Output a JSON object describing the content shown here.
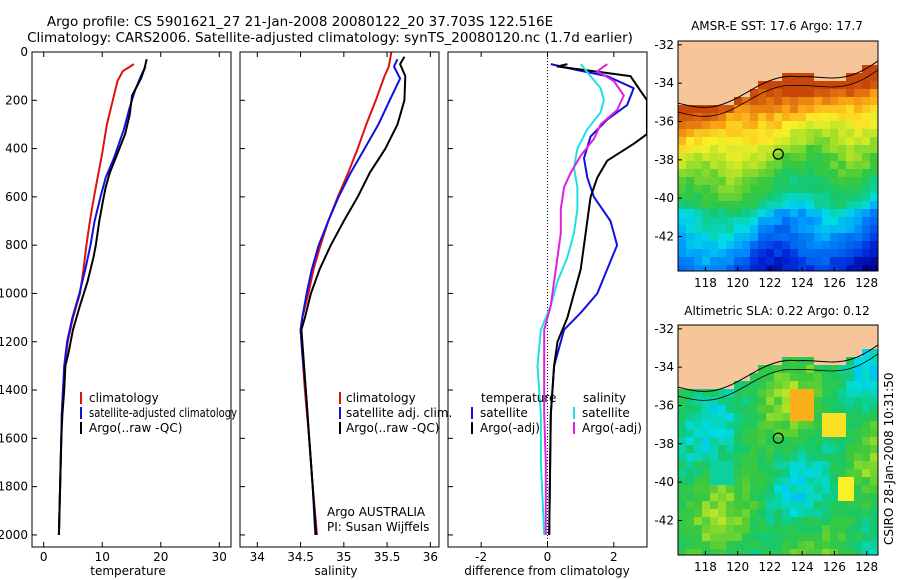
{
  "header": {
    "line1": "Argo profile: CS 5901621_27 21-Jan-2008 20080122_20 37.703S 122.516E",
    "line2": "Climatology: CARS2006. Satellite-adjusted climatology: synTS_20080120.nc (1.7d earlier)"
  },
  "side_stamp": "CSIRO 28-Jan-2008 10:31:50",
  "colors": {
    "red": "#e01010",
    "blue": "#1010e0",
    "black": "#000000",
    "cyan": "#20e0e0",
    "magenta": "#e020e0",
    "land": "#f6c59a"
  },
  "chart_data": [
    {
      "type": "line",
      "xlabel": "temperature",
      "ylabel": "",
      "xlim": [
        -2,
        32
      ],
      "ylim": [
        2050,
        0
      ],
      "xticks": [
        0,
        10,
        20,
        30
      ],
      "yticks": [
        0,
        200,
        400,
        600,
        800,
        1000,
        1200,
        1400,
        1600,
        1800,
        2000
      ],
      "legend": {
        "position": "lower-right",
        "entries": [
          "climatology",
          "satellite-adjusted climatology",
          "Argo(..raw -QC)"
        ]
      },
      "series": [
        {
          "name": "climatology",
          "color": "red",
          "points": [
            [
              15.4,
              50
            ],
            [
              13.5,
              80
            ],
            [
              12.6,
              120
            ],
            [
              11.8,
              200
            ],
            [
              10.8,
              300
            ],
            [
              10.0,
              420
            ],
            [
              9.2,
              520
            ],
            [
              8.6,
              600
            ],
            [
              7.9,
              700
            ],
            [
              7.3,
              800
            ],
            [
              6.8,
              900
            ],
            [
              6.2,
              1000
            ],
            [
              5.0,
              1100
            ],
            [
              4.1,
              1200
            ],
            [
              3.6,
              1300
            ],
            [
              3.3,
              1400
            ],
            [
              3.1,
              1500
            ],
            [
              3.0,
              1600
            ],
            [
              2.9,
              1700
            ],
            [
              2.8,
              1800
            ],
            [
              2.7,
              1900
            ],
            [
              2.6,
              2000
            ]
          ]
        },
        {
          "name": "satellite-adjusted climatology",
          "color": "blue",
          "points": [
            [
              17.4,
              60
            ],
            [
              16.6,
              100
            ],
            [
              15.6,
              160
            ],
            [
              14.7,
              230
            ],
            [
              13.7,
              320
            ],
            [
              12.0,
              440
            ],
            [
              10.6,
              520
            ],
            [
              9.7,
              600
            ],
            [
              8.7,
              700
            ],
            [
              8.0,
              800
            ],
            [
              7.1,
              900
            ],
            [
              6.1,
              1000
            ],
            [
              4.9,
              1100
            ],
            [
              4.0,
              1200
            ],
            [
              3.5,
              1300
            ],
            [
              3.3,
              1400
            ],
            [
              3.1,
              1500
            ],
            [
              3.0,
              1600
            ],
            [
              2.9,
              1700
            ],
            [
              2.8,
              1800
            ],
            [
              2.7,
              1900
            ],
            [
              2.6,
              2000
            ]
          ]
        },
        {
          "name": "Argo(..raw -QC)",
          "color": "black",
          "points": [
            [
              17.6,
              30
            ],
            [
              17.2,
              70
            ],
            [
              16.6,
              110
            ],
            [
              15.1,
              180
            ],
            [
              14.7,
              260
            ],
            [
              13.9,
              340
            ],
            [
              12.6,
              420
            ],
            [
              11.3,
              500
            ],
            [
              10.6,
              560
            ],
            [
              10.1,
              620
            ],
            [
              9.5,
              700
            ],
            [
              8.9,
              800
            ],
            [
              8.5,
              850
            ],
            [
              7.5,
              950
            ],
            [
              6.2,
              1050
            ],
            [
              5.0,
              1150
            ],
            [
              4.2,
              1250
            ],
            [
              3.7,
              1300
            ],
            [
              3.5,
              1400
            ],
            [
              3.2,
              1500
            ],
            [
              3.0,
              1600
            ],
            [
              2.9,
              1700
            ],
            [
              2.8,
              1800
            ],
            [
              2.7,
              1900
            ],
            [
              2.6,
              2000
            ]
          ]
        }
      ]
    },
    {
      "type": "line",
      "xlabel": "salinity",
      "xlim": [
        33.8,
        36.1
      ],
      "ylim": [
        2050,
        0
      ],
      "xticks": [
        34,
        34.5,
        35,
        35.5,
        36
      ],
      "legend": {
        "position": "lower-right",
        "entries": [
          "climatology",
          "satellite adj. clim.",
          "Argo(..raw -QC)"
        ]
      },
      "annotation": [
        "Argo AUSTRALIA",
        "PI: Susan Wijffels"
      ],
      "series": [
        {
          "name": "climatology",
          "color": "red",
          "points": [
            [
              35.55,
              0
            ],
            [
              35.52,
              60
            ],
            [
              35.47,
              100
            ],
            [
              35.37,
              200
            ],
            [
              35.26,
              300
            ],
            [
              35.16,
              400
            ],
            [
              35.05,
              500
            ],
            [
              34.93,
              600
            ],
            [
              34.82,
              700
            ],
            [
              34.73,
              800
            ],
            [
              34.65,
              900
            ],
            [
              34.59,
              1000
            ],
            [
              34.52,
              1100
            ],
            [
              34.5,
              1150
            ],
            [
              34.52,
              1250
            ],
            [
              34.55,
              1400
            ],
            [
              34.6,
              1600
            ],
            [
              34.64,
              1800
            ],
            [
              34.69,
              2000
            ]
          ]
        },
        {
          "name": "satellite adj. clim.",
          "color": "blue",
          "points": [
            [
              35.62,
              30
            ],
            [
              35.58,
              60
            ],
            [
              35.65,
              110
            ],
            [
              35.53,
              200
            ],
            [
              35.4,
              300
            ],
            [
              35.24,
              400
            ],
            [
              35.08,
              500
            ],
            [
              34.94,
              600
            ],
            [
              34.82,
              700
            ],
            [
              34.71,
              800
            ],
            [
              34.63,
              900
            ],
            [
              34.57,
              1000
            ],
            [
              34.52,
              1100
            ],
            [
              34.5,
              1150
            ],
            [
              34.52,
              1250
            ],
            [
              34.56,
              1400
            ],
            [
              34.6,
              1600
            ],
            [
              34.64,
              1800
            ],
            [
              34.67,
              2000
            ]
          ]
        },
        {
          "name": "Argo(..raw -QC)",
          "color": "black",
          "points": [
            [
              35.7,
              20
            ],
            [
              35.65,
              50
            ],
            [
              35.71,
              100
            ],
            [
              35.7,
              200
            ],
            [
              35.62,
              300
            ],
            [
              35.48,
              400
            ],
            [
              35.3,
              500
            ],
            [
              35.16,
              600
            ],
            [
              35.0,
              700
            ],
            [
              34.85,
              800
            ],
            [
              34.72,
              900
            ],
            [
              34.62,
              1000
            ],
            [
              34.55,
              1100
            ],
            [
              34.51,
              1150
            ],
            [
              34.53,
              1250
            ],
            [
              34.56,
              1400
            ],
            [
              34.6,
              1600
            ],
            [
              34.64,
              1800
            ],
            [
              34.68,
              2000
            ]
          ]
        }
      ]
    },
    {
      "type": "line",
      "xlabel": "difference from climatology",
      "xlim": [
        -3,
        3
      ],
      "ylim": [
        2050,
        0
      ],
      "xticks": [
        -2,
        0,
        2
      ],
      "legend": {
        "position": "lower-center",
        "groups": [
          "temperature",
          "salinity"
        ],
        "entries": [
          "satellite",
          "Argo(-adj)",
          "satellite",
          "Argo(-adj)"
        ]
      },
      "series": [
        {
          "name": "temperature satellite",
          "color": "blue",
          "points": [
            [
              0.1,
              50
            ],
            [
              0.9,
              75
            ],
            [
              1.8,
              100
            ],
            [
              2.6,
              150
            ],
            [
              2.4,
              220
            ],
            [
              1.8,
              280
            ],
            [
              1.3,
              350
            ],
            [
              1.1,
              440
            ],
            [
              1.2,
              520
            ],
            [
              1.4,
              600
            ],
            [
              1.9,
              700
            ],
            [
              2.1,
              800
            ],
            [
              1.8,
              900
            ],
            [
              1.5,
              1000
            ],
            [
              1.0,
              1080
            ],
            [
              0.5,
              1150
            ],
            [
              0.2,
              1300
            ],
            [
              0.1,
              1500
            ],
            [
              0.05,
              2000
            ]
          ]
        },
        {
          "name": "temperature Argo(-adj)",
          "color": "black",
          "points": [
            [
              0.6,
              50
            ],
            [
              0.3,
              60
            ],
            [
              1.4,
              80
            ],
            [
              2.5,
              100
            ],
            [
              3.0,
              200
            ],
            [
              3.0,
              280
            ],
            [
              3.0,
              340
            ],
            [
              2.6,
              380
            ],
            [
              1.8,
              450
            ],
            [
              1.5,
              520
            ],
            [
              1.3,
              600
            ],
            [
              1.2,
              700
            ],
            [
              1.1,
              800
            ],
            [
              1.0,
              900
            ],
            [
              0.8,
              1000
            ],
            [
              0.6,
              1100
            ],
            [
              0.3,
              1200
            ],
            [
              0.2,
              1300
            ],
            [
              0.1,
              1500
            ],
            [
              0.05,
              2000
            ]
          ]
        },
        {
          "name": "salinity satellite",
          "color": "cyan",
          "points": [
            [
              1.0,
              50
            ],
            [
              1.3,
              100
            ],
            [
              1.6,
              150
            ],
            [
              1.7,
              200
            ],
            [
              1.6,
              250
            ],
            [
              1.2,
              320
            ],
            [
              0.9,
              400
            ],
            [
              0.8,
              480
            ],
            [
              0.9,
              560
            ],
            [
              0.9,
              650
            ],
            [
              0.8,
              750
            ],
            [
              0.6,
              850
            ],
            [
              0.3,
              950
            ],
            [
              0.1,
              1050
            ],
            [
              -0.2,
              1150
            ],
            [
              -0.3,
              1300
            ],
            [
              -0.2,
              1500
            ],
            [
              -0.2,
              1700
            ],
            [
              -0.1,
              2000
            ]
          ]
        },
        {
          "name": "salinity Argo(-adj)",
          "color": "magenta",
          "points": [
            [
              1.8,
              50
            ],
            [
              1.5,
              80
            ],
            [
              2.0,
              120
            ],
            [
              2.3,
              180
            ],
            [
              2.1,
              240
            ],
            [
              1.6,
              300
            ],
            [
              1.4,
              360
            ],
            [
              1.0,
              430
            ],
            [
              0.7,
              500
            ],
            [
              0.5,
              560
            ],
            [
              0.4,
              650
            ],
            [
              0.4,
              750
            ],
            [
              0.3,
              850
            ],
            [
              0.2,
              950
            ],
            [
              0.1,
              1050
            ],
            [
              -0.1,
              1150
            ],
            [
              -0.1,
              1300
            ],
            [
              -0.1,
              1500
            ],
            [
              -0.05,
              1700
            ],
            [
              -0.05,
              2000
            ]
          ]
        }
      ]
    },
    {
      "type": "heatmap",
      "title": "AMSR-E SST: 17.6 Argo: 17.7",
      "xlim": [
        116.3,
        128.7
      ],
      "ylim": [
        -43.8,
        -31.8
      ],
      "xticks": [
        118,
        120,
        122,
        124,
        126,
        128
      ],
      "yticks": [
        -32,
        -34,
        -36,
        -38,
        -40,
        -42
      ],
      "marker": {
        "lon": 122.516,
        "lat": -37.703
      }
    },
    {
      "type": "heatmap",
      "title": "Altimetric SLA: 0.22 Argo: 0.12",
      "xlim": [
        116.3,
        128.7
      ],
      "ylim": [
        -43.8,
        -31.8
      ],
      "xticks": [
        118,
        120,
        122,
        124,
        126,
        128
      ],
      "yticks": [
        -32,
        -34,
        -36,
        -38,
        -40,
        -42
      ],
      "marker": {
        "lon": 122.516,
        "lat": -37.703
      }
    }
  ]
}
